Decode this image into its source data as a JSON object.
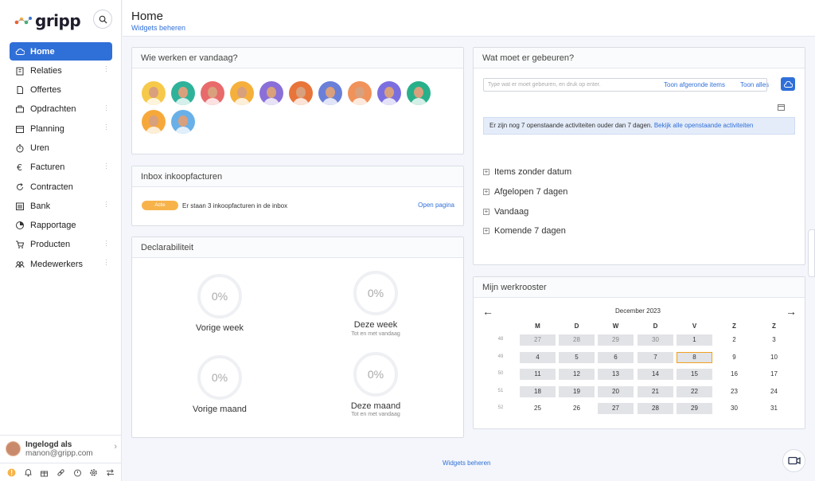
{
  "app": {
    "logo": "gripp"
  },
  "sidebar": {
    "items": [
      {
        "label": "Home",
        "icon": "cloud-icon",
        "active": true,
        "menu": false
      },
      {
        "label": "Relaties",
        "icon": "building-icon",
        "menu": true
      },
      {
        "label": "Offertes",
        "icon": "document-icon",
        "menu": false
      },
      {
        "label": "Opdrachten",
        "icon": "briefcase-icon",
        "menu": true
      },
      {
        "label": "Planning",
        "icon": "calendar-icon",
        "menu": true
      },
      {
        "label": "Uren",
        "icon": "stopwatch-icon",
        "menu": false
      },
      {
        "label": "Facturen",
        "icon": "euro-icon",
        "menu": true
      },
      {
        "label": "Contracten",
        "icon": "refresh-icon",
        "menu": false
      },
      {
        "label": "Bank",
        "icon": "bank-icon",
        "menu": true
      },
      {
        "label": "Rapportage",
        "icon": "report-icon",
        "menu": false
      },
      {
        "label": "Producten",
        "icon": "cart-icon",
        "menu": true
      },
      {
        "label": "Medewerkers",
        "icon": "users-icon",
        "menu": true
      }
    ],
    "user": {
      "title": "Ingelogd als",
      "email": "manon@gripp.com"
    }
  },
  "header": {
    "title": "Home",
    "widgets_link": "Widgets beheren"
  },
  "who": {
    "title": "Wie werken er vandaag?",
    "count": 12
  },
  "inbox": {
    "title": "Inbox inkoopfacturen",
    "badge": "Actie",
    "text": "Er staan 3 inkoopfacturen in de inbox",
    "link": "Open pagina"
  },
  "decl": {
    "title": "Declarabiliteit",
    "gauges": [
      {
        "value": "0%",
        "label": "Vorige week",
        "sub": ""
      },
      {
        "value": "0%",
        "label": "Deze week",
        "sub": "Tot en met vandaag"
      },
      {
        "value": "0%",
        "label": "Vorige maand",
        "sub": ""
      },
      {
        "value": "0%",
        "label": "Deze maand",
        "sub": "Tot en met vandaag"
      }
    ]
  },
  "todo": {
    "title": "Wat moet er gebeuren?",
    "link_done": "Toon afgeronde items",
    "link_all": "Toon alles",
    "placeholder": "Type wat er moet gebeuren, en druk op enter.",
    "info_text": "Er zijn nog 7 openstaande activiteiten ouder dan 7 dagen.",
    "info_link": "Bekijk alle openstaande activiteiten",
    "groups": [
      "Items zonder datum",
      "Afgelopen 7 dagen",
      "Vandaag",
      "Komende 7 dagen"
    ]
  },
  "schedule": {
    "title": "Mijn werkrooster",
    "month": "December 2023",
    "days": [
      "M",
      "D",
      "W",
      "D",
      "V",
      "Z",
      "Z"
    ],
    "weeks": [
      {
        "wk": "48",
        "dates": [
          "27",
          "28",
          "29",
          "30",
          "1",
          "2",
          "3"
        ]
      },
      {
        "wk": "49",
        "dates": [
          "4",
          "5",
          "6",
          "7",
          "8",
          "9",
          "10"
        ]
      },
      {
        "wk": "50",
        "dates": [
          "11",
          "12",
          "13",
          "14",
          "15",
          "16",
          "17"
        ]
      },
      {
        "wk": "51",
        "dates": [
          "18",
          "19",
          "20",
          "21",
          "22",
          "23",
          "24"
        ]
      },
      {
        "wk": "52",
        "dates": [
          "25",
          "26",
          "27",
          "28",
          "29",
          "30",
          "31"
        ]
      }
    ]
  },
  "footer": {
    "widgets_link": "Widgets beheren"
  }
}
